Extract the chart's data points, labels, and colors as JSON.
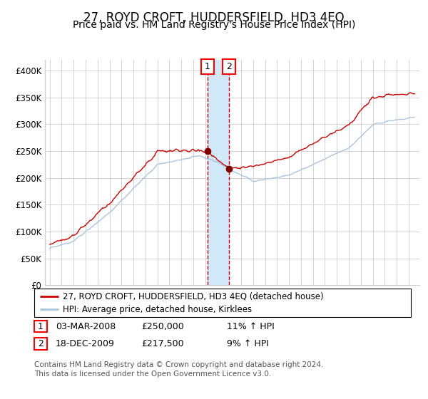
{
  "title": "27, ROYD CROFT, HUDDERSFIELD, HD3 4EQ",
  "subtitle": "Price paid vs. HM Land Registry's House Price Index (HPI)",
  "ylim": [
    0,
    420000
  ],
  "yticks": [
    0,
    50000,
    100000,
    150000,
    200000,
    250000,
    300000,
    350000,
    400000
  ],
  "ytick_labels": [
    "£0",
    "£50K",
    "£100K",
    "£150K",
    "£200K",
    "£250K",
    "£300K",
    "£350K",
    "£400K"
  ],
  "hpi_color": "#a8c4e0",
  "price_color": "#cc0000",
  "marker_color": "#800000",
  "vspan_color": "#d0e8f8",
  "vline_color": "#cc0000",
  "grid_color": "#cccccc",
  "background_color": "#ffffff",
  "transaction1_date": 2008.17,
  "transaction1_price": 250000,
  "transaction2_date": 2009.96,
  "transaction2_price": 217500,
  "legend1_text": "27, ROYD CROFT, HUDDERSFIELD, HD3 4EQ (detached house)",
  "legend2_text": "HPI: Average price, detached house, Kirklees",
  "table_row1": [
    "1",
    "03-MAR-2008",
    "£250,000",
    "11% ↑ HPI"
  ],
  "table_row2": [
    "2",
    "18-DEC-2009",
    "£217,500",
    "9% ↑ HPI"
  ],
  "footnote": "Contains HM Land Registry data © Crown copyright and database right 2024.\nThis data is licensed under the Open Government Licence v3.0.",
  "title_fontsize": 12,
  "subtitle_fontsize": 10,
  "tick_fontsize": 8.5,
  "legend_fontsize": 8.5,
  "table_fontsize": 9,
  "footnote_fontsize": 7.5
}
